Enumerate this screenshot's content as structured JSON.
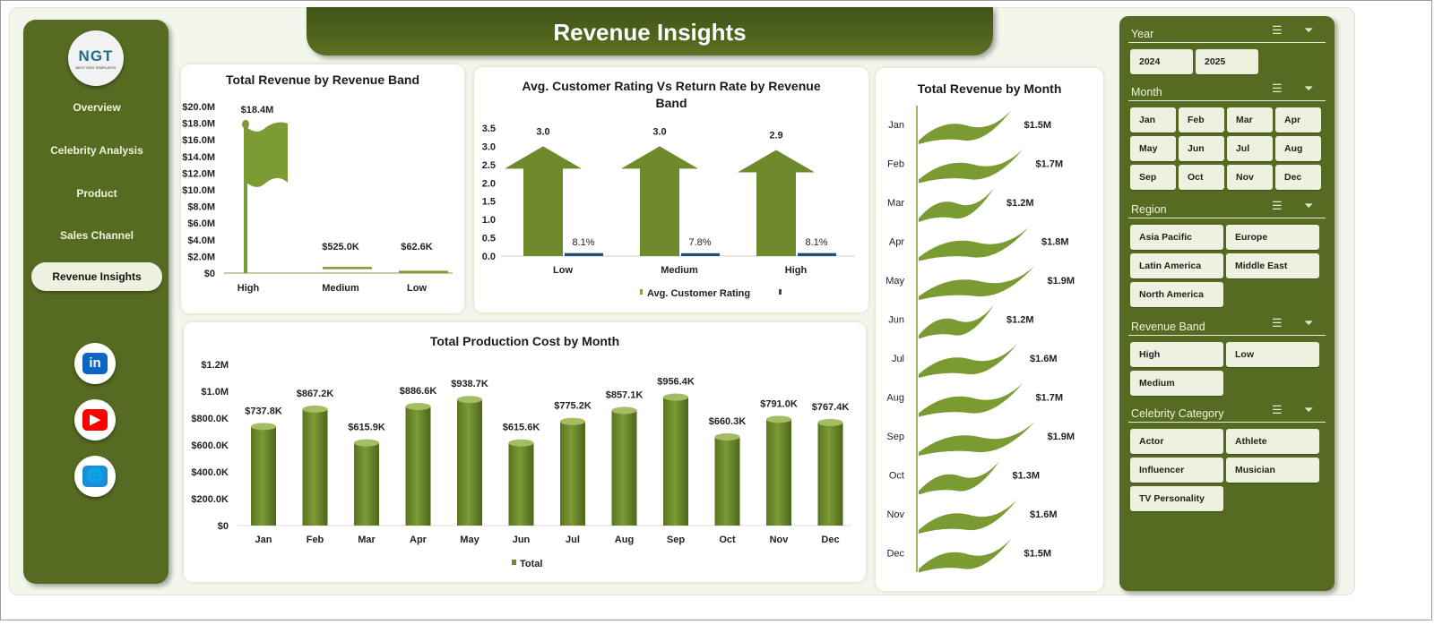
{
  "title": "Revenue Insights",
  "logo": {
    "text": "NGT",
    "subtext": "NEXT GEN TEMPLATES"
  },
  "nav": [
    {
      "label": "Overview"
    },
    {
      "label": "Celebrity Analysis"
    },
    {
      "label": "Product"
    },
    {
      "label": "Sales Channel"
    },
    {
      "label": "Revenue Insights",
      "active": true
    }
  ],
  "social": [
    {
      "icon": "linkedin-icon",
      "label": "in",
      "color": "#0a66c2"
    },
    {
      "icon": "youtube-icon",
      "label": "▶",
      "color": "#ff0000"
    },
    {
      "icon": "globe-icon",
      "label": "🌐",
      "color": "#1a8fd6"
    }
  ],
  "colors": {
    "green": "#566b22",
    "bar": "#6e8c2c",
    "blue": "#1f4e79"
  },
  "slicers": [
    {
      "title": "Year",
      "items": [
        "2024",
        "2025"
      ]
    },
    {
      "title": "Month",
      "items": [
        "Jan",
        "Feb",
        "Mar",
        "Apr",
        "May",
        "Jun",
        "Jul",
        "Aug",
        "Sep",
        "Oct",
        "Nov",
        "Dec"
      ]
    },
    {
      "title": "Region",
      "items": [
        "Asia Pacific",
        "Europe",
        "Latin America",
        "Middle East",
        "North America"
      ]
    },
    {
      "title": "Revenue Band",
      "items": [
        "High",
        "Low",
        "Medium"
      ]
    },
    {
      "title": "Celebrity Category",
      "items": [
        "Actor",
        "Athlete",
        "Influencer",
        "Musician",
        "TV Personality"
      ]
    }
  ],
  "chart_data": [
    {
      "type": "bar",
      "title": "Total Revenue by Revenue Band",
      "categories": [
        "High",
        "Medium",
        "Low"
      ],
      "values": [
        18400000,
        525000,
        62600
      ],
      "labels": [
        "$18.4M",
        "$525.0K",
        "$62.6K"
      ],
      "ylim": [
        0,
        20000000
      ],
      "yticks": [
        "$0",
        "$2.0M",
        "$4.0M",
        "$6.0M",
        "$8.0M",
        "$10.0M",
        "$12.0M",
        "$14.0M",
        "$16.0M",
        "$18.0M",
        "$20.0M"
      ]
    },
    {
      "type": "bar",
      "title": "Avg. Customer Rating Vs Return Rate  by Revenue Band",
      "categories": [
        "Low",
        "Medium",
        "High"
      ],
      "series": [
        {
          "name": "Avg. Customer Rating",
          "values": [
            3.0,
            3.0,
            2.9
          ],
          "labels": [
            "3.0",
            "3.0",
            "2.9"
          ]
        },
        {
          "name": "",
          "values": [
            0.081,
            0.078,
            0.081
          ],
          "labels": [
            "8.1%",
            "7.8%",
            "8.1%"
          ]
        }
      ],
      "ylim": [
        0,
        3.5
      ],
      "yticks": [
        "0.0",
        "0.5",
        "1.0",
        "1.5",
        "2.0",
        "2.5",
        "3.0",
        "3.5"
      ],
      "legend": "bottom"
    },
    {
      "type": "bar",
      "title": "Total Production Cost by Month",
      "categories": [
        "Jan",
        "Feb",
        "Mar",
        "Apr",
        "May",
        "Jun",
        "Jul",
        "Aug",
        "Sep",
        "Oct",
        "Nov",
        "Dec"
      ],
      "series": [
        {
          "name": "Total",
          "values": [
            737800,
            867200,
            615900,
            886600,
            938700,
            615600,
            775200,
            857100,
            956400,
            660300,
            791000,
            767400
          ]
        }
      ],
      "labels": [
        "$737.8K",
        "$867.2K",
        "$615.9K",
        "$886.6K",
        "$938.7K",
        "$615.6K",
        "$775.2K",
        "$857.1K",
        "$956.4K",
        "$660.3K",
        "$791.0K",
        "$767.4K"
      ],
      "ylim": [
        0,
        1200000
      ],
      "yticks": [
        "$0",
        "$200.0K",
        "$400.0K",
        "$600.0K",
        "$800.0K",
        "$1.0M",
        "$1.2M"
      ],
      "legend": "bottom"
    },
    {
      "type": "bar",
      "orientation": "horizontal",
      "title": "Total Revenue  by Month",
      "categories": [
        "Jan",
        "Feb",
        "Mar",
        "Apr",
        "May",
        "Jun",
        "Jul",
        "Aug",
        "Sep",
        "Oct",
        "Nov",
        "Dec"
      ],
      "values": [
        1500000,
        1700000,
        1200000,
        1800000,
        1900000,
        1200000,
        1600000,
        1700000,
        1900000,
        1300000,
        1600000,
        1500000
      ],
      "labels": [
        "$1.5M",
        "$1.7M",
        "$1.2M",
        "$1.8M",
        "$1.9M",
        "$1.2M",
        "$1.6M",
        "$1.7M",
        "$1.9M",
        "$1.3M",
        "$1.6M",
        "$1.5M"
      ]
    }
  ]
}
